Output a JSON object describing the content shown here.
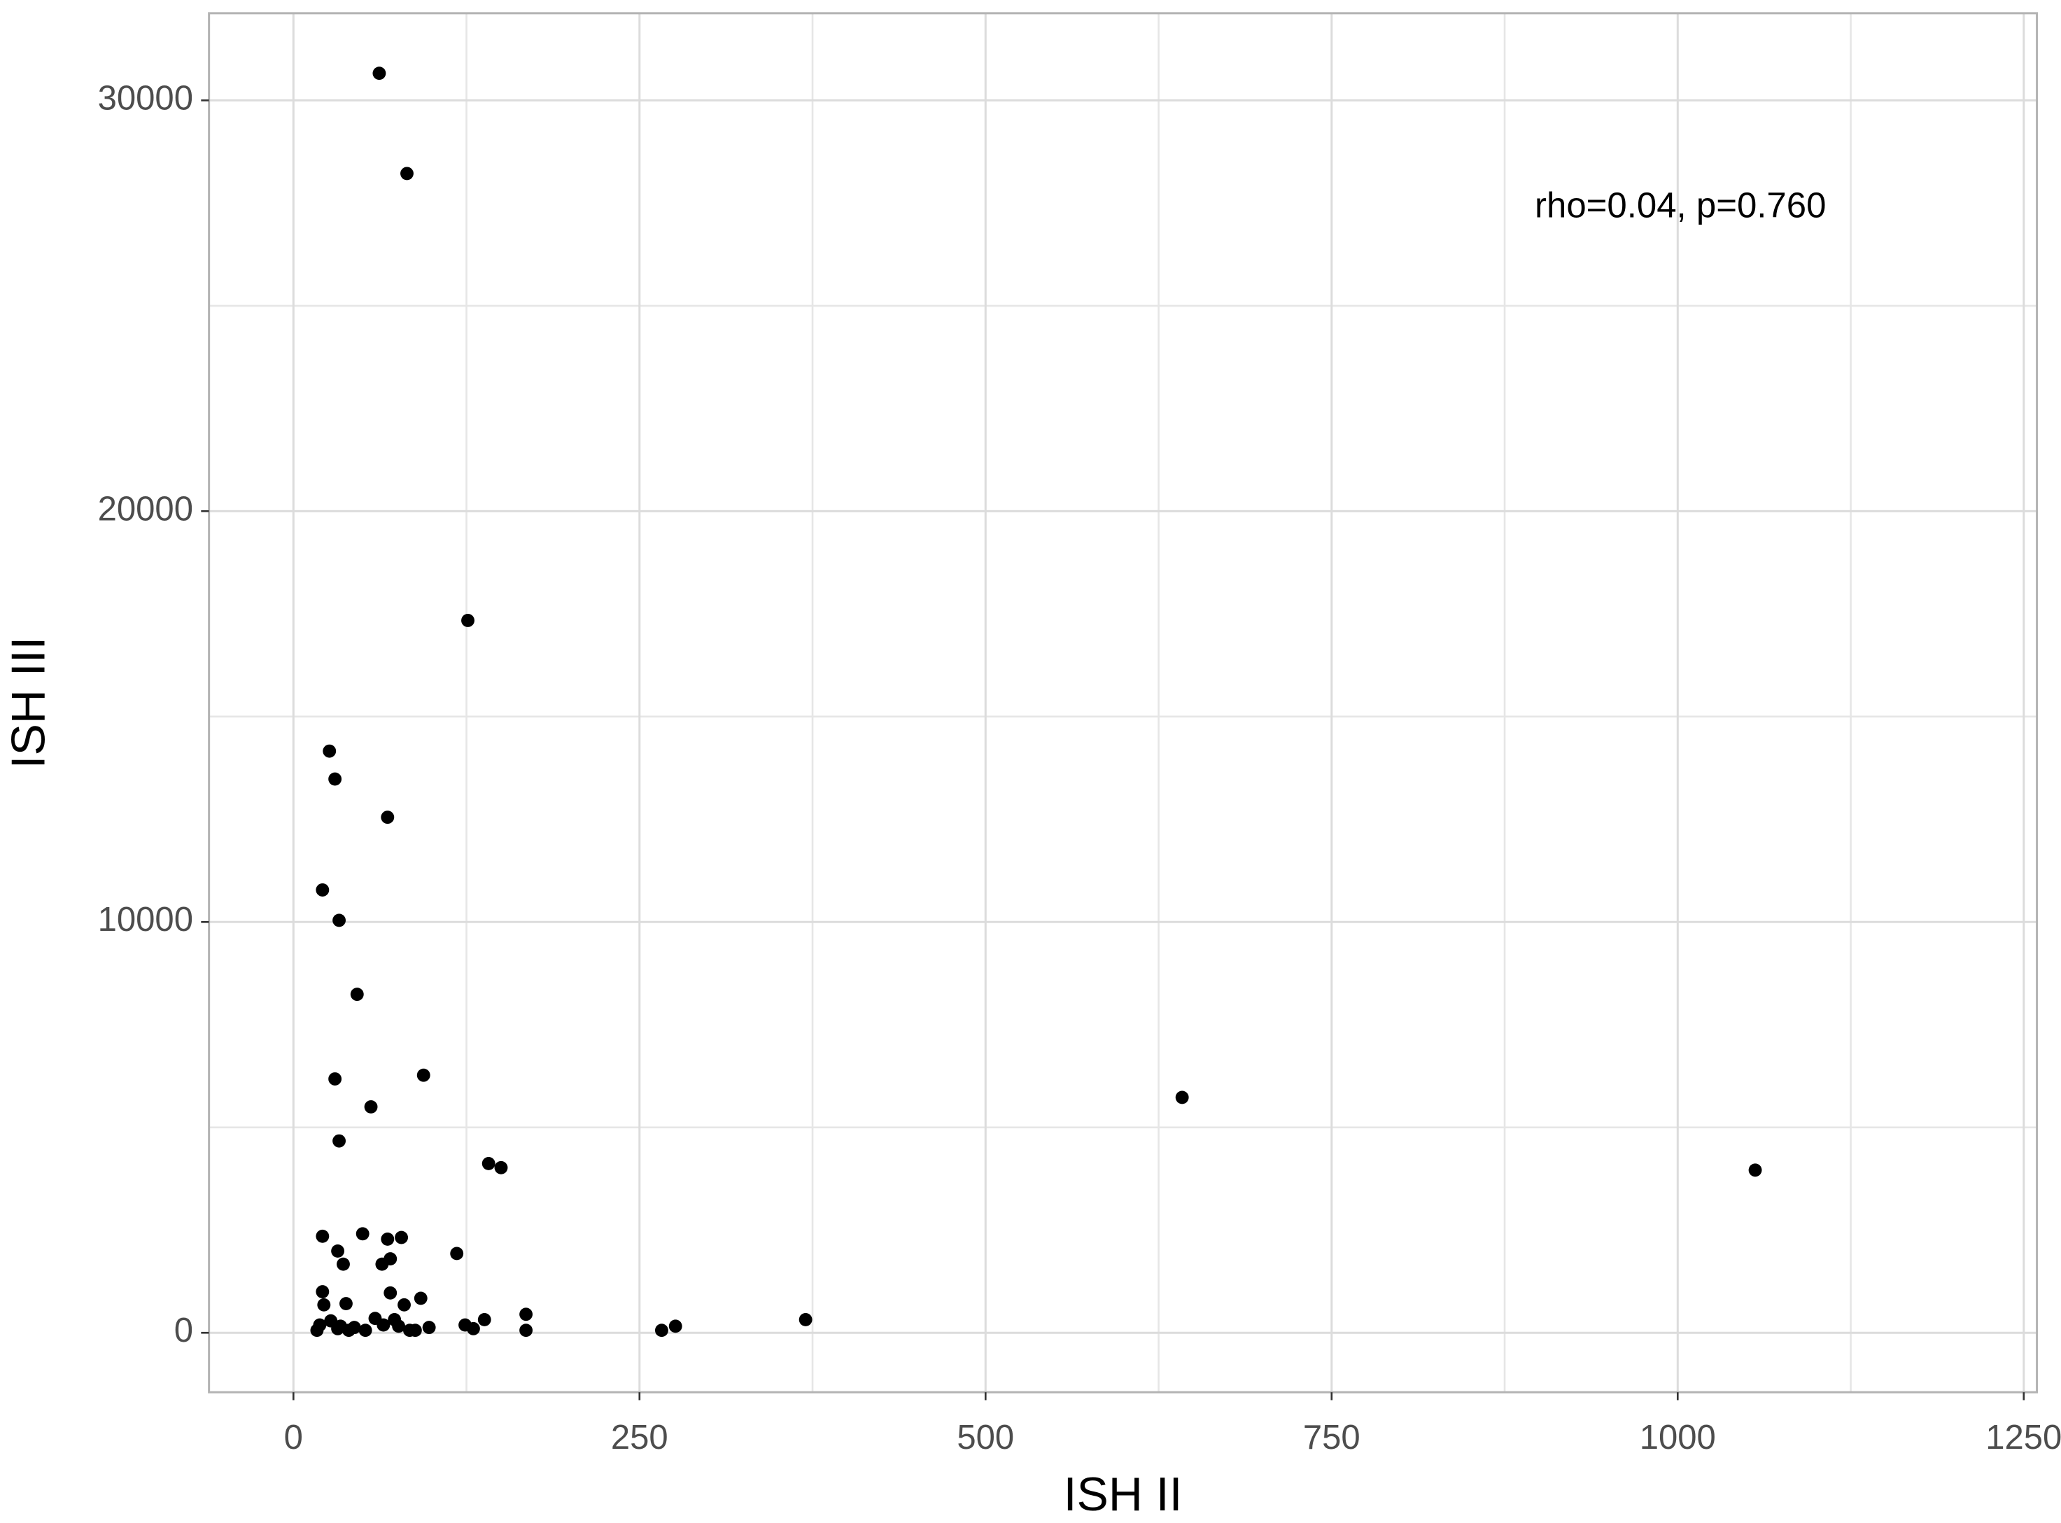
{
  "chart_data": {
    "type": "scatter",
    "xlabel": "ISH II",
    "ylabel": "ISH III",
    "annotation": {
      "text": "rho=0.04, p=0.760",
      "x": 1002,
      "y": 27380
    },
    "color": "#000000",
    "grid": true,
    "xlim": [
      -61,
      1259.5
    ],
    "ylim": [
      -1447,
      32122
    ],
    "xticks": [
      0,
      250,
      500,
      750,
      1000,
      1250
    ],
    "yticks": [
      0,
      10000,
      20000,
      30000
    ],
    "x": [
      62,
      82,
      126,
      26,
      30,
      68,
      21,
      33,
      46,
      30,
      94,
      56,
      642,
      33,
      141,
      150,
      1056,
      21,
      50,
      68,
      78,
      32,
      118,
      70,
      36,
      64,
      21,
      70,
      92,
      38,
      22,
      80,
      168,
      370,
      138,
      124,
      276,
      266,
      168,
      130,
      98,
      19,
      27,
      34,
      44,
      52,
      59,
      65,
      73,
      76,
      84,
      17,
      32,
      40,
      88
    ],
    "values": [
      30660,
      28220,
      17340,
      14160,
      13480,
      12550,
      10780,
      10040,
      8240,
      6180,
      6270,
      5500,
      5730,
      4670,
      4120,
      4020,
      3960,
      2350,
      2410,
      2280,
      2320,
      1990,
      1930,
      1800,
      1670,
      1670,
      1000,
      970,
      840,
      710,
      680,
      680,
      450,
      320,
      320,
      190,
      160,
      60,
      60,
      100,
      130,
      190,
      290,
      160,
      130,
      60,
      350,
      190,
      320,
      160,
      60,
      60,
      100,
      60,
      60
    ]
  }
}
